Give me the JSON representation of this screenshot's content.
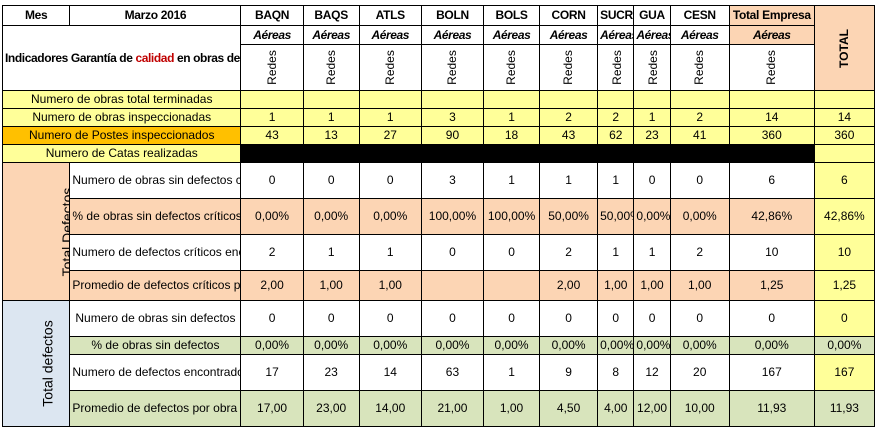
{
  "header": {
    "mes": "Mes",
    "periodo": "Marzo 2016",
    "columns": [
      "BAQN",
      "BAQS",
      "ATLS",
      "BOLN",
      "BOLS",
      "CORN",
      "SUCR",
      "GUA",
      "CESN",
      "Total Empresa"
    ],
    "subheader": "Aéreas",
    "total": "TOTAL",
    "redes": "Redes"
  },
  "indicator_title": {
    "before": "Indicadores Garantía de ",
    "highlight": "calidad",
    "after": " en obras de red eléctricas (redes MBT)"
  },
  "summary_rows": [
    {
      "label": "Numero de obras total terminadas",
      "values": [
        "",
        "",
        "",
        "",
        "",
        "",
        "",
        "",
        "",
        ""
      ],
      "total": ""
    },
    {
      "label": "Numero de obras inspeccionadas",
      "values": [
        "1",
        "1",
        "1",
        "3",
        "1",
        "2",
        "2",
        "1",
        "2",
        "14"
      ],
      "total": "14"
    },
    {
      "label": "Numero de Postes inspeccionados",
      "values": [
        "43",
        "13",
        "27",
        "90",
        "18",
        "43",
        "62",
        "23",
        "41",
        "360"
      ],
      "total": "360"
    },
    {
      "label": "Numero de Catas realizadas",
      "values": [
        "",
        "",
        "",
        "",
        "",
        "",
        "",
        "",
        "",
        ""
      ],
      "total": ""
    }
  ],
  "sections": [
    {
      "title": "Total Defectos Críticos para el Activo",
      "rows": [
        {
          "label": "Numero de obras sin defectos críticos",
          "values": [
            "0",
            "0",
            "0",
            "3",
            "1",
            "1",
            "1",
            "0",
            "0",
            "6"
          ],
          "total": "6"
        },
        {
          "label": "% de obras sin defectos críticos",
          "values": [
            "0,00%",
            "0,00%",
            "0,00%",
            "100,00%",
            "100,00%",
            "50,00%",
            "50,00%",
            "0,00%",
            "0,00%",
            "42,86%"
          ],
          "total": "42,86%"
        },
        {
          "label": "Numero de defectos críticos encontrados",
          "values": [
            "2",
            "1",
            "1",
            "0",
            "0",
            "2",
            "1",
            "1",
            "2",
            "10"
          ],
          "total": "10"
        },
        {
          "label": "Promedio de defectos críticos por obra con defectos",
          "values": [
            "2,00",
            "1,00",
            "1,00",
            "",
            "",
            "2,00",
            "1,00",
            "1,00",
            "1,00",
            "1,25"
          ],
          "total": "1,25"
        }
      ]
    },
    {
      "title": "Total defectos",
      "rows": [
        {
          "label": "Numero de obras sin defectos",
          "values": [
            "0",
            "0",
            "0",
            "0",
            "0",
            "0",
            "0",
            "0",
            "0",
            "0"
          ],
          "total": "0"
        },
        {
          "label": "% de obras sin defectos",
          "values": [
            "0,00%",
            "0,00%",
            "0,00%",
            "0,00%",
            "0,00%",
            "0,00%",
            "0,00%",
            "0,00%",
            "0,00%",
            "0,00%"
          ],
          "total": "0,00%"
        },
        {
          "label": "Numero de defectos encontrados",
          "values": [
            "17",
            "23",
            "14",
            "63",
            "1",
            "9",
            "8",
            "12",
            "20",
            "167"
          ],
          "total": "167"
        },
        {
          "label": "Promedio de defectos por obra con defectos",
          "values": [
            "17,00",
            "23,00",
            "14,00",
            "21,00",
            "1,00",
            "4,50",
            "4,00",
            "12,00",
            "10,00",
            "11,93"
          ],
          "total": "11,93"
        }
      ]
    }
  ],
  "colors": {
    "yellow": "#ffff99",
    "orange": "#ffc000",
    "peach": "#fcd5b4",
    "green": "#d8e4bc",
    "blue": "#dce6f1",
    "red_text": "#c00000"
  }
}
